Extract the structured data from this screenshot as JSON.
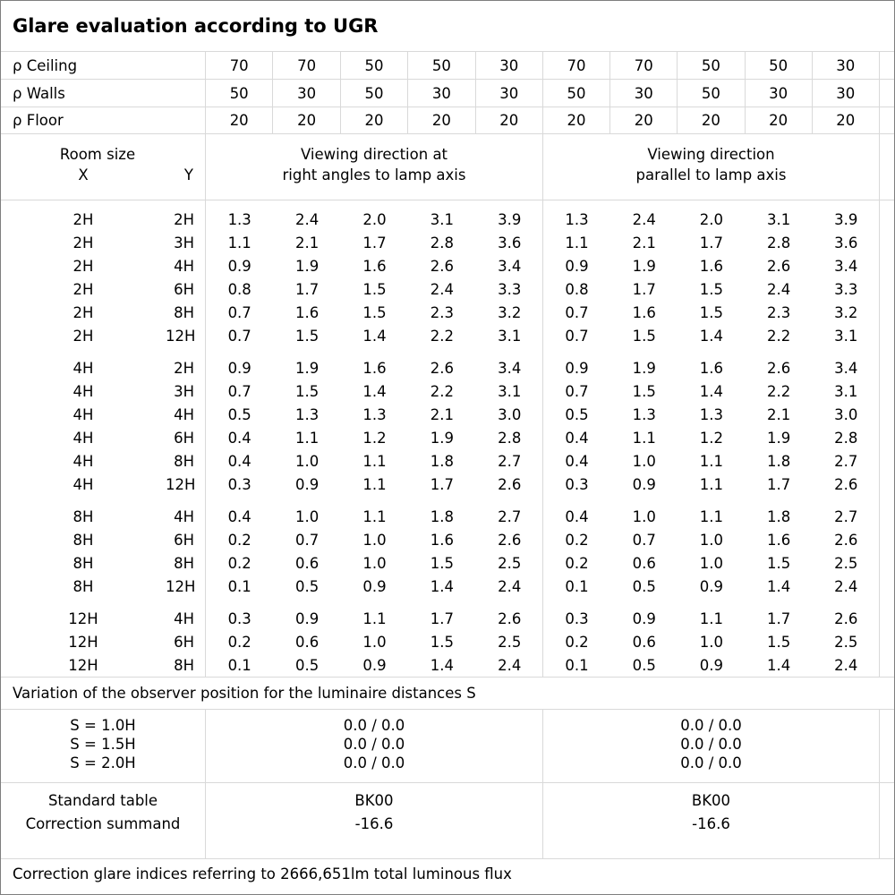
{
  "title": "Glare evaluation according to UGR",
  "colors": {
    "grid_line": "#d9d9d9",
    "outer_border": "#7f7f7f",
    "text": "#000000",
    "background": "#ffffff"
  },
  "reflectances": [
    {
      "label": "ρ Ceiling",
      "values": [
        "70",
        "70",
        "50",
        "50",
        "30",
        "70",
        "70",
        "50",
        "50",
        "30"
      ]
    },
    {
      "label": "ρ Walls",
      "values": [
        "50",
        "30",
        "50",
        "30",
        "30",
        "50",
        "30",
        "50",
        "30",
        "30"
      ]
    },
    {
      "label": "ρ Floor",
      "values": [
        "20",
        "20",
        "20",
        "20",
        "20",
        "20",
        "20",
        "20",
        "20",
        "20"
      ]
    }
  ],
  "room_header": {
    "title": "Room size",
    "x_label": "X",
    "y_label": "Y"
  },
  "groups": [
    {
      "line1": "Viewing direction at",
      "line2": "right angles to lamp axis"
    },
    {
      "line1": "Viewing direction",
      "line2": "parallel to lamp axis"
    }
  ],
  "row_groups": [
    {
      "rows": [
        {
          "x": "2H",
          "y": "2H",
          "right_angles": [
            "1.3",
            "2.4",
            "2.0",
            "3.1",
            "3.9"
          ],
          "parallel": [
            "1.3",
            "2.4",
            "2.0",
            "3.1",
            "3.9"
          ]
        },
        {
          "x": "2H",
          "y": "3H",
          "right_angles": [
            "1.1",
            "2.1",
            "1.7",
            "2.8",
            "3.6"
          ],
          "parallel": [
            "1.1",
            "2.1",
            "1.7",
            "2.8",
            "3.6"
          ]
        },
        {
          "x": "2H",
          "y": "4H",
          "right_angles": [
            "0.9",
            "1.9",
            "1.6",
            "2.6",
            "3.4"
          ],
          "parallel": [
            "0.9",
            "1.9",
            "1.6",
            "2.6",
            "3.4"
          ]
        },
        {
          "x": "2H",
          "y": "6H",
          "right_angles": [
            "0.8",
            "1.7",
            "1.5",
            "2.4",
            "3.3"
          ],
          "parallel": [
            "0.8",
            "1.7",
            "1.5",
            "2.4",
            "3.3"
          ]
        },
        {
          "x": "2H",
          "y": "8H",
          "right_angles": [
            "0.7",
            "1.6",
            "1.5",
            "2.3",
            "3.2"
          ],
          "parallel": [
            "0.7",
            "1.6",
            "1.5",
            "2.3",
            "3.2"
          ]
        },
        {
          "x": "2H",
          "y": "12H",
          "right_angles": [
            "0.7",
            "1.5",
            "1.4",
            "2.2",
            "3.1"
          ],
          "parallel": [
            "0.7",
            "1.5",
            "1.4",
            "2.2",
            "3.1"
          ]
        }
      ]
    },
    {
      "rows": [
        {
          "x": "4H",
          "y": "2H",
          "right_angles": [
            "0.9",
            "1.9",
            "1.6",
            "2.6",
            "3.4"
          ],
          "parallel": [
            "0.9",
            "1.9",
            "1.6",
            "2.6",
            "3.4"
          ]
        },
        {
          "x": "4H",
          "y": "3H",
          "right_angles": [
            "0.7",
            "1.5",
            "1.4",
            "2.2",
            "3.1"
          ],
          "parallel": [
            "0.7",
            "1.5",
            "1.4",
            "2.2",
            "3.1"
          ]
        },
        {
          "x": "4H",
          "y": "4H",
          "right_angles": [
            "0.5",
            "1.3",
            "1.3",
            "2.1",
            "3.0"
          ],
          "parallel": [
            "0.5",
            "1.3",
            "1.3",
            "2.1",
            "3.0"
          ]
        },
        {
          "x": "4H",
          "y": "6H",
          "right_angles": [
            "0.4",
            "1.1",
            "1.2",
            "1.9",
            "2.8"
          ],
          "parallel": [
            "0.4",
            "1.1",
            "1.2",
            "1.9",
            "2.8"
          ]
        },
        {
          "x": "4H",
          "y": "8H",
          "right_angles": [
            "0.4",
            "1.0",
            "1.1",
            "1.8",
            "2.7"
          ],
          "parallel": [
            "0.4",
            "1.0",
            "1.1",
            "1.8",
            "2.7"
          ]
        },
        {
          "x": "4H",
          "y": "12H",
          "right_angles": [
            "0.3",
            "0.9",
            "1.1",
            "1.7",
            "2.6"
          ],
          "parallel": [
            "0.3",
            "0.9",
            "1.1",
            "1.7",
            "2.6"
          ]
        }
      ]
    },
    {
      "rows": [
        {
          "x": "8H",
          "y": "4H",
          "right_angles": [
            "0.4",
            "1.0",
            "1.1",
            "1.8",
            "2.7"
          ],
          "parallel": [
            "0.4",
            "1.0",
            "1.1",
            "1.8",
            "2.7"
          ]
        },
        {
          "x": "8H",
          "y": "6H",
          "right_angles": [
            "0.2",
            "0.7",
            "1.0",
            "1.6",
            "2.6"
          ],
          "parallel": [
            "0.2",
            "0.7",
            "1.0",
            "1.6",
            "2.6"
          ]
        },
        {
          "x": "8H",
          "y": "8H",
          "right_angles": [
            "0.2",
            "0.6",
            "1.0",
            "1.5",
            "2.5"
          ],
          "parallel": [
            "0.2",
            "0.6",
            "1.0",
            "1.5",
            "2.5"
          ]
        },
        {
          "x": "8H",
          "y": "12H",
          "right_angles": [
            "0.1",
            "0.5",
            "0.9",
            "1.4",
            "2.4"
          ],
          "parallel": [
            "0.1",
            "0.5",
            "0.9",
            "1.4",
            "2.4"
          ]
        }
      ]
    },
    {
      "rows": [
        {
          "x": "12H",
          "y": "4H",
          "right_angles": [
            "0.3",
            "0.9",
            "1.1",
            "1.7",
            "2.6"
          ],
          "parallel": [
            "0.3",
            "0.9",
            "1.1",
            "1.7",
            "2.6"
          ]
        },
        {
          "x": "12H",
          "y": "6H",
          "right_angles": [
            "0.2",
            "0.6",
            "1.0",
            "1.5",
            "2.5"
          ],
          "parallel": [
            "0.2",
            "0.6",
            "1.0",
            "1.5",
            "2.5"
          ]
        },
        {
          "x": "12H",
          "y": "8H",
          "right_angles": [
            "0.1",
            "0.5",
            "0.9",
            "1.4",
            "2.4"
          ],
          "parallel": [
            "0.1",
            "0.5",
            "0.9",
            "1.4",
            "2.4"
          ]
        }
      ]
    }
  ],
  "variation_note": "Variation of the observer position for the luminaire distances S",
  "s_rows": [
    {
      "label": "S = 1.0H",
      "right_angles": "0.0 / 0.0",
      "parallel": "0.0 / 0.0"
    },
    {
      "label": "S = 1.5H",
      "right_angles": "0.0 / 0.0",
      "parallel": "0.0 / 0.0"
    },
    {
      "label": "S = 2.0H",
      "right_angles": "0.0 / 0.0",
      "parallel": "0.0 / 0.0"
    }
  ],
  "summary": {
    "standard_table_label": "Standard table",
    "correction_summand_label": "Correction summand",
    "standard_table": {
      "right_angles": "BK00",
      "parallel": "BK00"
    },
    "correction_summand": {
      "right_angles": "-16.6",
      "parallel": "-16.6"
    }
  },
  "footer": "Correction glare indices referring to 2666,651lm total luminous flux"
}
